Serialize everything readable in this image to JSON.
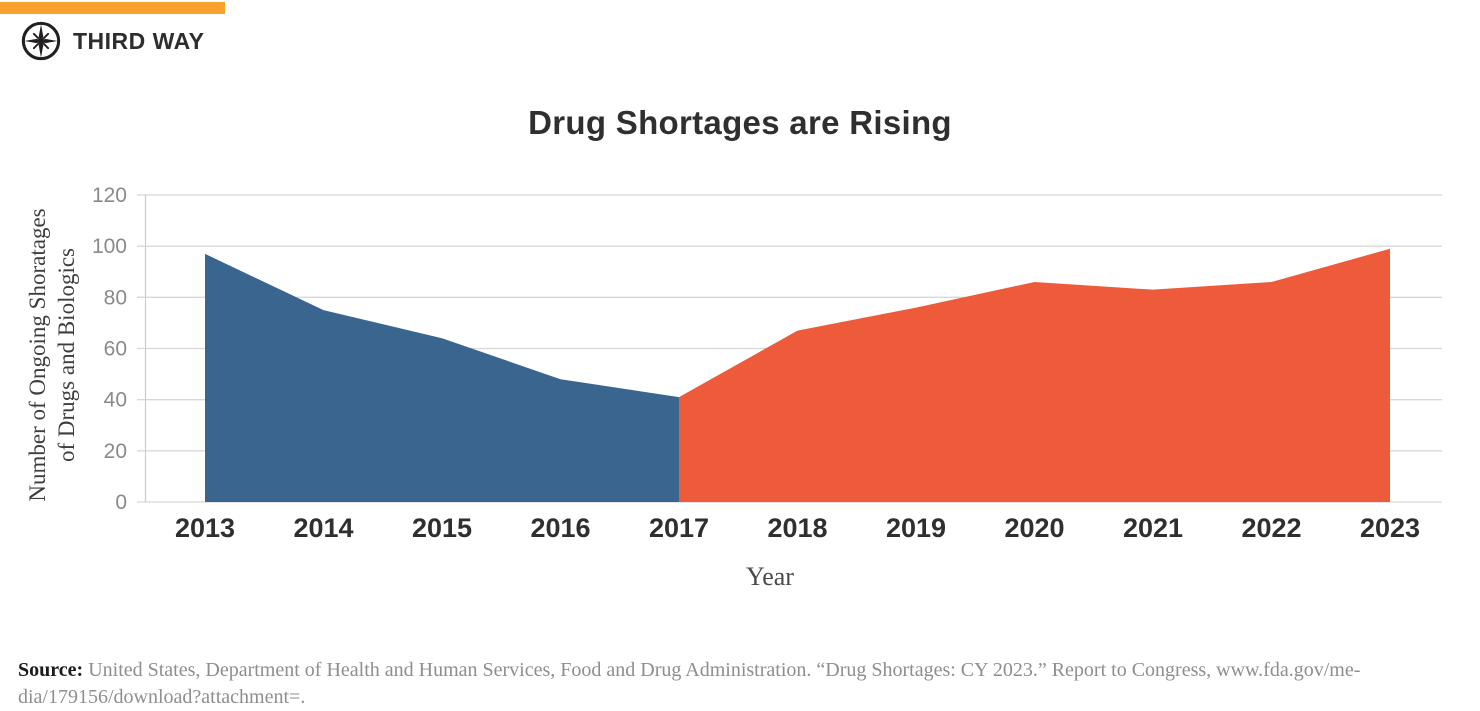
{
  "header": {
    "brand": "THIRD WAY"
  },
  "chart_data": {
    "type": "area",
    "title": "Drug Shortages are Rising",
    "xlabel": "Year",
    "ylabel_line1": "Number of Ongoing Shoratages",
    "ylabel_line2": "of Drugs and Biologics",
    "categories": [
      "2013",
      "2014",
      "2015",
      "2016",
      "2017",
      "2018",
      "2019",
      "2020",
      "2021",
      "2022",
      "2023"
    ],
    "series": [
      {
        "name": "shortages-2013-2017",
        "color": "#3A658E",
        "start_index": 0,
        "values": [
          97,
          75,
          64,
          48,
          41
        ]
      },
      {
        "name": "shortages-2017-2023",
        "color": "#EE5B3A",
        "start_index": 4,
        "values": [
          41,
          67,
          76,
          86,
          83,
          86,
          99
        ]
      }
    ],
    "yticks": [
      0,
      20,
      40,
      60,
      80,
      100,
      120
    ],
    "ylim": [
      0,
      120
    ],
    "grid": true,
    "legend_position": "none"
  },
  "source": {
    "label": "Source:",
    "line1": "United States, Department of Health and Human Services, Food and Drug Administration. “Drug Shortages: CY 2023.” Report to Congress, www.fda.gov/me-",
    "line2": "dia/179156/download?attachment=."
  },
  "colors": {
    "accent_bar": "#F9A12F",
    "blue_area": "#3A658E",
    "orange_area": "#EE5B3A",
    "gridline": "#D8D8D8"
  }
}
